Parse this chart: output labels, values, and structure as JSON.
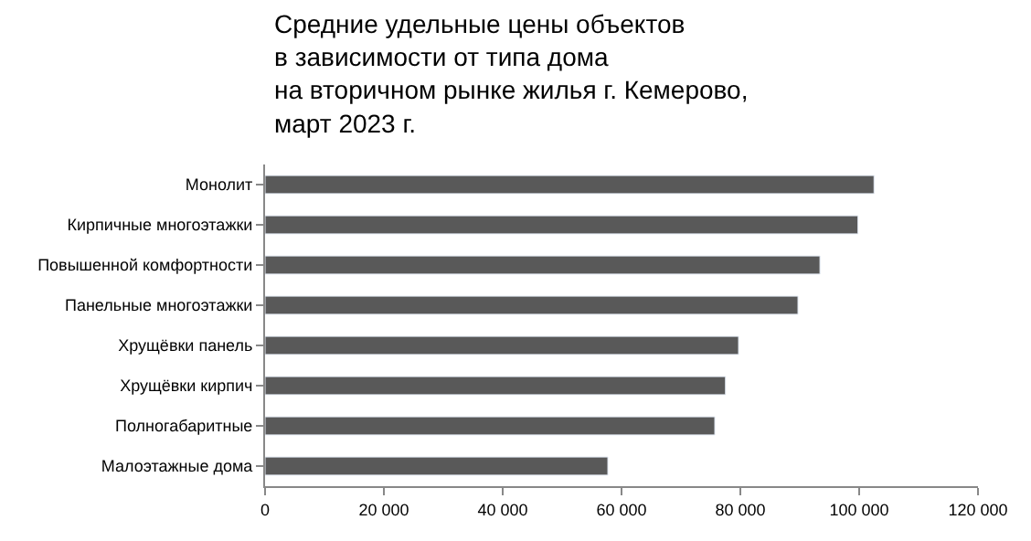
{
  "chart_data": {
    "type": "bar",
    "orientation": "horizontal",
    "title": "Средние удельные цены объектов\nв зависимости от типа дома\nна вторичном рынке жилья г. Кемерово,\nмарт 2023 г.",
    "categories": [
      "Монолит",
      "Кирпичные многоэтажки",
      "Повышенной комфортности",
      "Панельные многоэтажки",
      "Хрущёвки панель",
      "Хрущёвки кирпич",
      "Полногабаритные",
      "Малоэтажные дома"
    ],
    "values": [
      102500,
      99800,
      93400,
      89700,
      79700,
      77500,
      75700,
      57700
    ],
    "color": "#595959",
    "xlim": [
      0,
      120000
    ],
    "xticks": [
      {
        "value": 0,
        "label": "0"
      },
      {
        "value": 20000,
        "label": "20 000"
      },
      {
        "value": 40000,
        "label": "40 000"
      },
      {
        "value": 60000,
        "label": "60 000"
      },
      {
        "value": 80000,
        "label": "80 000"
      },
      {
        "value": 100000,
        "label": "100 000"
      },
      {
        "value": 120000,
        "label": "120 000"
      }
    ],
    "legend": false
  }
}
